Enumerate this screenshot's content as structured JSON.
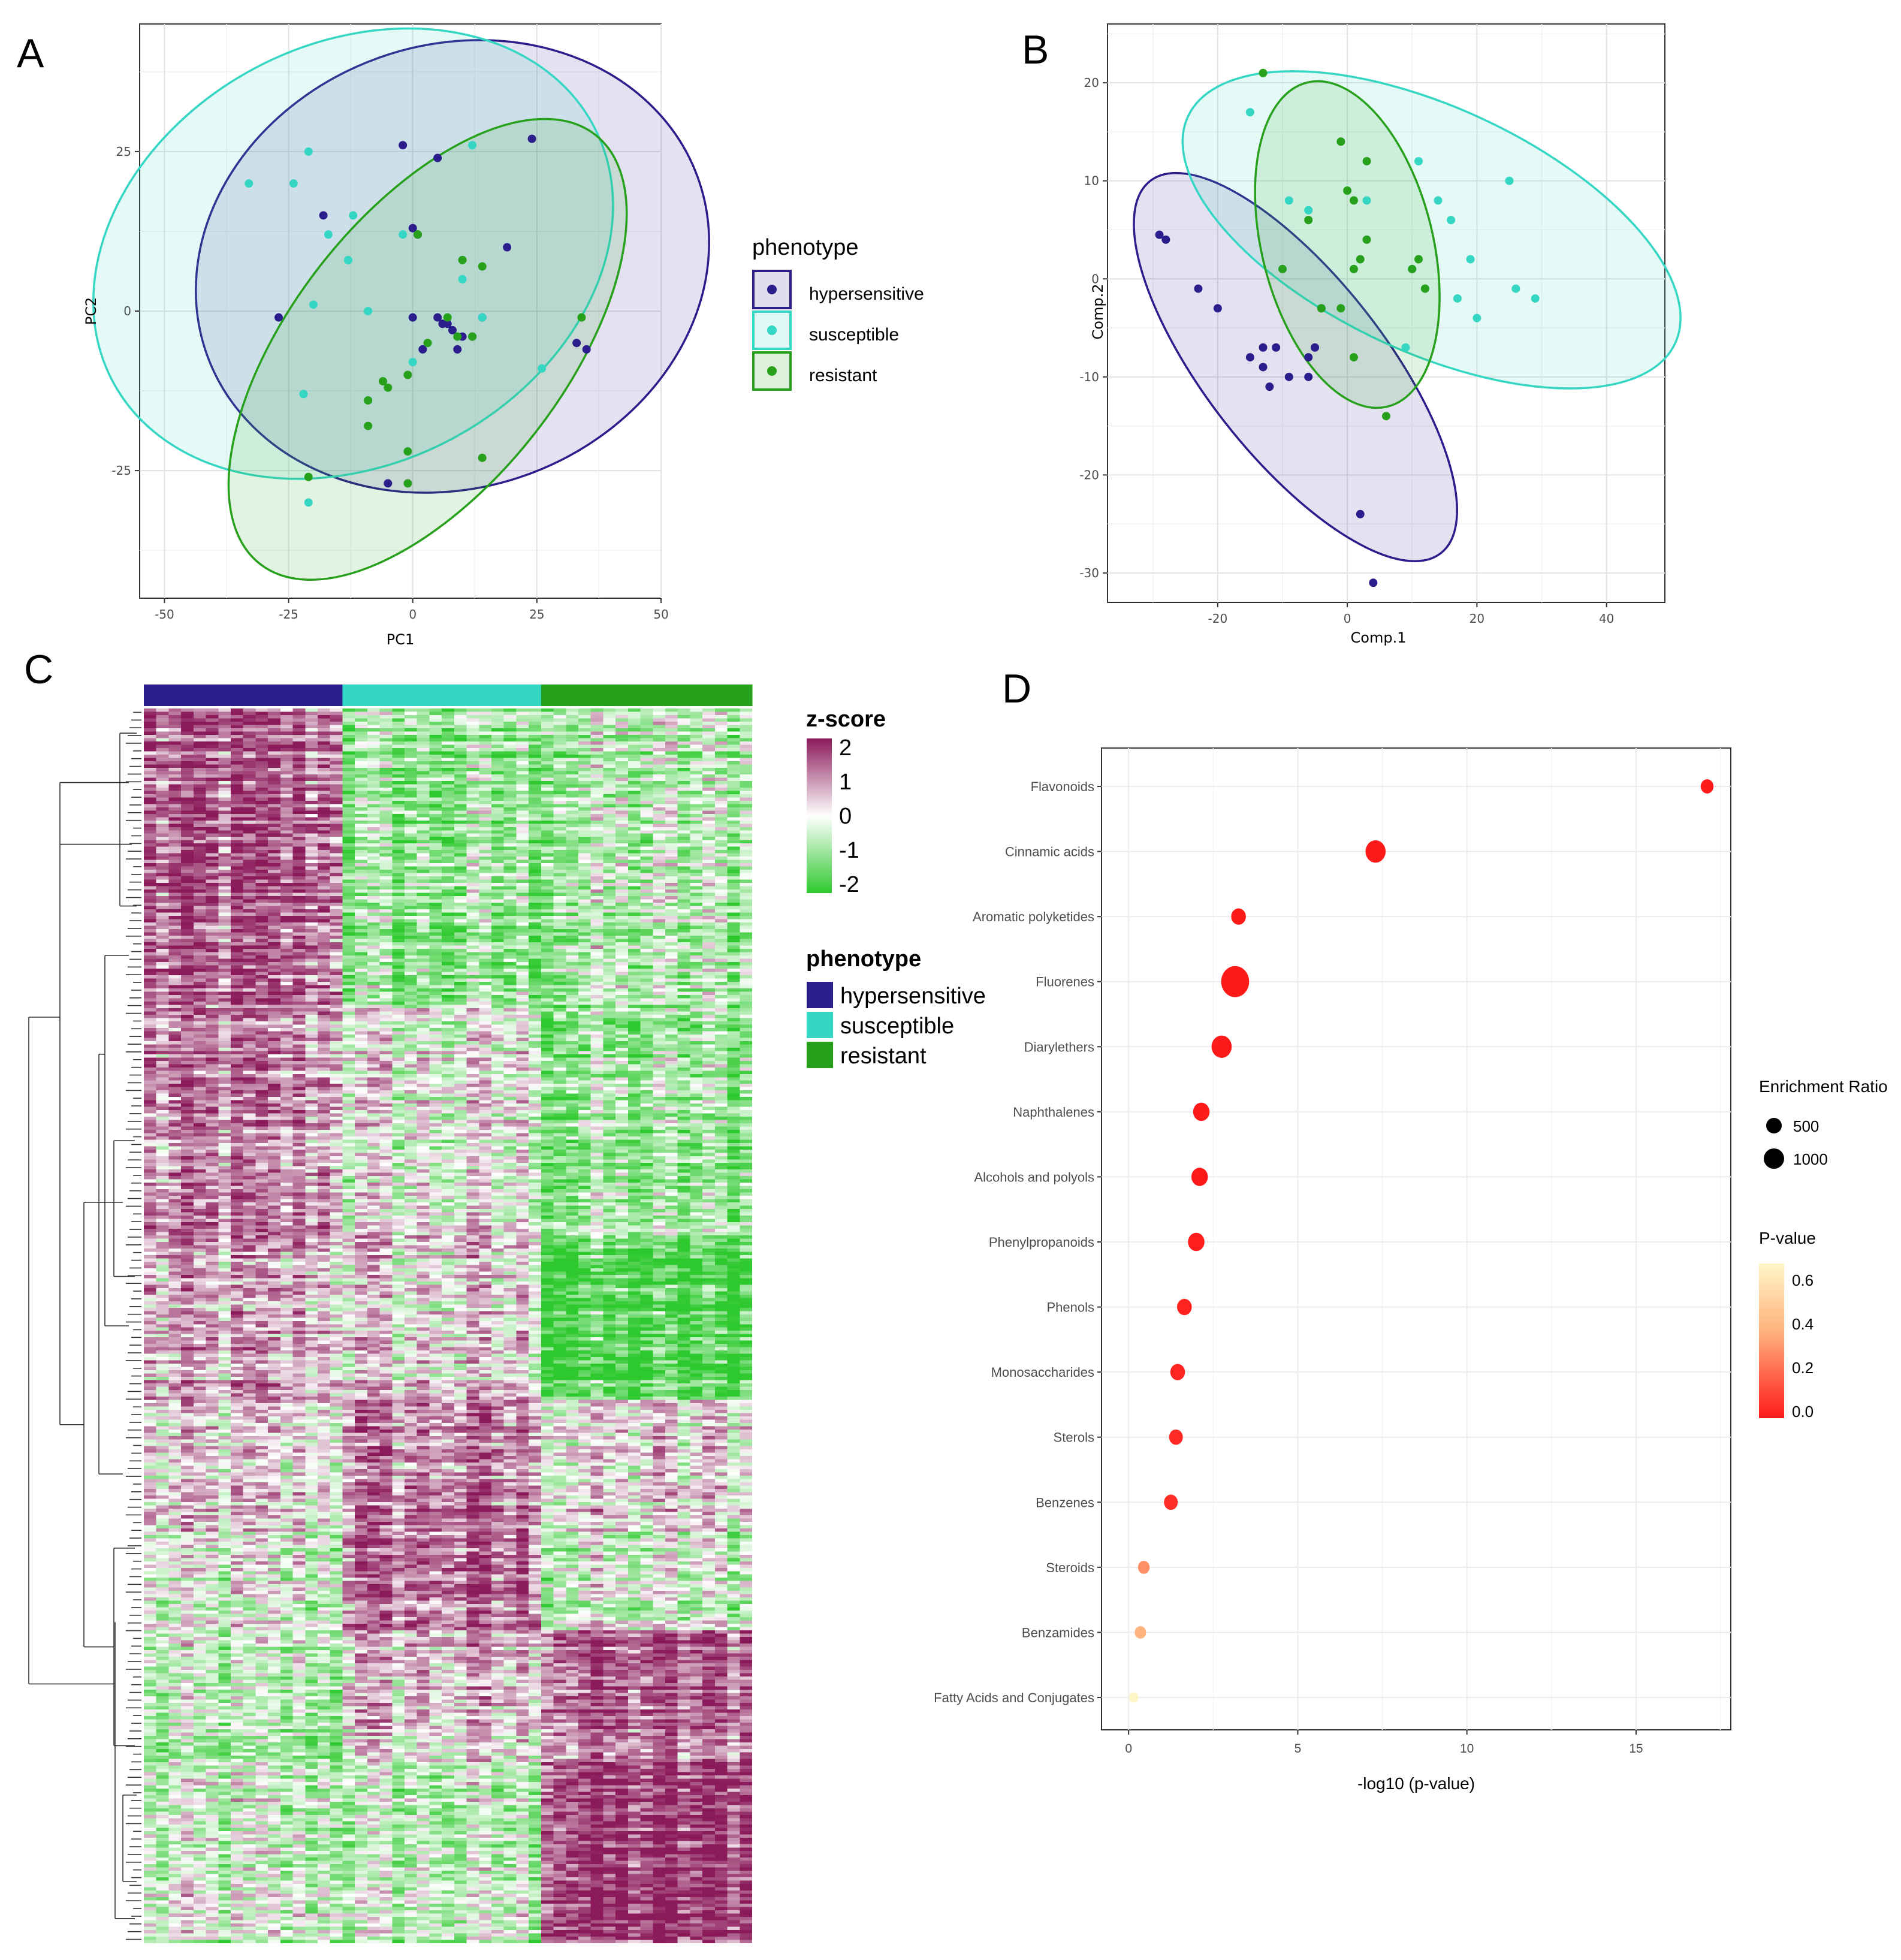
{
  "figure": {
    "panel_labels": [
      "A",
      "B",
      "C",
      "D"
    ]
  },
  "colors": {
    "hypersensitive": "#2b1e8c",
    "susceptible": "#35d6c3",
    "resistant": "#27a01c",
    "heat_high": "#8b1a5a",
    "heat_mid": "#ffffff",
    "heat_low": "#2ec92e",
    "pval_low": "#ff1a1a",
    "pval_high": "#fff6c8"
  },
  "chart_data": [
    {
      "panel": "A",
      "type": "scatter",
      "xlabel": "PC1",
      "ylabel": "PC2",
      "xlim": [
        -55,
        50
      ],
      "ylim": [
        -45,
        45
      ],
      "xticks": [
        "-50",
        "-25",
        "0",
        "25",
        "50"
      ],
      "yticks": [
        "-25",
        "0",
        "25"
      ],
      "legend": {
        "title": "phenotype",
        "entries": [
          "hypersensitive",
          "susceptible",
          "resistant"
        ]
      },
      "ellipses": [
        {
          "group": "hypersensitive",
          "cx": 8,
          "cy": 7,
          "rx": 46,
          "ry": 39,
          "angle": -20
        },
        {
          "group": "susceptible",
          "cx": -12,
          "cy": 9,
          "rx": 48,
          "ry": 37,
          "angle": -28
        },
        {
          "group": "resistant",
          "cx": 3,
          "cy": -6,
          "rx": 24,
          "ry": 48,
          "angle": 38
        }
      ],
      "series": [
        {
          "name": "hypersensitive",
          "points": [
            [
              -27,
              -1
            ],
            [
              -18,
              15
            ],
            [
              -2,
              26
            ],
            [
              5,
              24
            ],
            [
              1,
              12
            ],
            [
              0,
              13
            ],
            [
              2,
              -6
            ],
            [
              6,
              -2
            ],
            [
              7,
              -2
            ],
            [
              8,
              -3
            ],
            [
              9,
              -6
            ],
            [
              10,
              -4
            ],
            [
              12,
              -4
            ],
            [
              14,
              -1
            ],
            [
              19,
              10
            ],
            [
              24,
              27
            ],
            [
              33,
              -5
            ],
            [
              35,
              -6
            ],
            [
              -5,
              -27
            ],
            [
              0,
              -1
            ],
            [
              5,
              -1
            ]
          ]
        },
        {
          "name": "susceptible",
          "points": [
            [
              -33,
              20
            ],
            [
              -24,
              20
            ],
            [
              -21,
              25
            ],
            [
              -17,
              12
            ],
            [
              -13,
              8
            ],
            [
              -12,
              15
            ],
            [
              -9,
              0
            ],
            [
              -2,
              12
            ],
            [
              0,
              -8
            ],
            [
              -20,
              1
            ],
            [
              12,
              26
            ],
            [
              14,
              -1
            ],
            [
              26,
              -9
            ],
            [
              -22,
              -13
            ],
            [
              -21,
              -30
            ],
            [
              10,
              5
            ]
          ]
        },
        {
          "name": "resistant",
          "points": [
            [
              -9,
              -14
            ],
            [
              -9,
              -18
            ],
            [
              -6,
              -11
            ],
            [
              -5,
              -12
            ],
            [
              -1,
              -10
            ],
            [
              -1,
              -27
            ],
            [
              1,
              12
            ],
            [
              7,
              -1
            ],
            [
              9,
              -4
            ],
            [
              10,
              8
            ],
            [
              12,
              -4
            ],
            [
              14,
              7
            ],
            [
              14,
              -23
            ],
            [
              34,
              -1
            ],
            [
              -21,
              -26
            ],
            [
              -1,
              -22
            ],
            [
              3,
              -5
            ]
          ]
        }
      ]
    },
    {
      "panel": "B",
      "type": "scatter",
      "xlabel": "Comp.1",
      "ylabel": "Comp.2",
      "xlim": [
        -37,
        49
      ],
      "ylim": [
        -33,
        26
      ],
      "xticks": [
        "-20",
        "0",
        "20",
        "40"
      ],
      "yticks": [
        "-30",
        "-20",
        "-10",
        "0",
        "10",
        "20"
      ],
      "ellipses": [
        {
          "group": "hypersensitive",
          "cx": -8,
          "cy": -9,
          "rx": 29,
          "ry": 11,
          "angle": 52
        },
        {
          "group": "susceptible",
          "cx": 13,
          "cy": 5,
          "rx": 33,
          "ry": 15,
          "angle": 25
        },
        {
          "group": "resistant",
          "cx": 0,
          "cy": 3.5,
          "rx": 20.5,
          "ry": 10.5,
          "angle": 76
        }
      ],
      "series": [
        {
          "name": "hypersensitive",
          "points": [
            [
              -29,
              4.5
            ],
            [
              -28,
              4
            ],
            [
              -23,
              -1
            ],
            [
              -20,
              -3
            ],
            [
              -15,
              -8
            ],
            [
              -13,
              -9
            ],
            [
              -12,
              -11
            ],
            [
              -11,
              -7
            ],
            [
              -9,
              -10
            ],
            [
              -6,
              -10
            ],
            [
              -5,
              -7
            ],
            [
              -4,
              -3
            ],
            [
              2,
              -24
            ],
            [
              4,
              -31
            ],
            [
              -6,
              -8
            ],
            [
              -13,
              -7
            ]
          ]
        },
        {
          "name": "susceptible",
          "points": [
            [
              -15,
              17
            ],
            [
              -9,
              8
            ],
            [
              -6,
              7
            ],
            [
              3,
              8
            ],
            [
              10,
              1
            ],
            [
              11,
              12
            ],
            [
              12,
              -1
            ],
            [
              14,
              8
            ],
            [
              16,
              6
            ],
            [
              17,
              -2
            ],
            [
              19,
              2
            ],
            [
              20,
              -4
            ],
            [
              25,
              10
            ],
            [
              26,
              -1
            ],
            [
              29,
              -2
            ],
            [
              9,
              -7
            ]
          ]
        },
        {
          "name": "resistant",
          "points": [
            [
              -13,
              21
            ],
            [
              -6,
              6
            ],
            [
              -4,
              -3
            ],
            [
              -1,
              14
            ],
            [
              -1,
              -3
            ],
            [
              0,
              9
            ],
            [
              1,
              1
            ],
            [
              1,
              8
            ],
            [
              2,
              2
            ],
            [
              3,
              12
            ],
            [
              3,
              4
            ],
            [
              10,
              1
            ],
            [
              11,
              2
            ],
            [
              12,
              -1
            ],
            [
              -10,
              1
            ],
            [
              6,
              -14
            ],
            [
              1,
              -8
            ]
          ]
        }
      ]
    },
    {
      "panel": "C",
      "type": "heatmap",
      "legend_scale": {
        "title": "z-score",
        "ticks": [
          "2",
          "1",
          "0",
          "-1",
          "-2"
        ]
      },
      "legend": {
        "title": "phenotype",
        "entries": [
          "hypersensitive",
          "susceptible",
          "resistant"
        ]
      },
      "column_groups": [
        {
          "group": "hypersensitive",
          "columns": 16
        },
        {
          "group": "susceptible",
          "columns": 16
        },
        {
          "group": "resistant",
          "columns": 17
        }
      ],
      "row_blocks": [
        {
          "rows": 90,
          "means": [
            1.2,
            -0.9,
            -0.6
          ]
        },
        {
          "rows": 70,
          "means": [
            0.8,
            -0.1,
            -0.9
          ]
        },
        {
          "rows": 50,
          "means": [
            0.5,
            0.2,
            -1.6
          ]
        },
        {
          "rows": 40,
          "means": [
            0.1,
            0.9,
            0.1
          ]
        },
        {
          "rows": 30,
          "means": [
            -0.3,
            1.0,
            -0.4
          ]
        },
        {
          "rows": 40,
          "means": [
            -0.6,
            0.4,
            1.2
          ]
        },
        {
          "rows": 55,
          "means": [
            -0.4,
            -0.5,
            1.6
          ]
        }
      ]
    },
    {
      "panel": "D",
      "type": "scatter",
      "xlabel": "-log10 (p-value)",
      "xlim": [
        -0.8,
        17.8
      ],
      "xticks": [
        "0",
        "5",
        "10",
        "15"
      ],
      "categories": [
        "Flavonoids",
        "Cinnamic acids",
        "Aromatic polyketides",
        "Fluorenes",
        "Diarylethers",
        "Naphthalenes",
        "Alcohols and polyols",
        "Phenylpropanoids",
        "Phenols",
        "Monosaccharides",
        "Sterols",
        "Benzenes",
        "Steroids",
        "Benzamides",
        "Fatty Acids and Conjugates"
      ],
      "x": [
        17.1,
        7.3,
        3.25,
        3.15,
        2.75,
        2.15,
        2.1,
        2.0,
        1.65,
        1.45,
        1.4,
        1.25,
        0.45,
        0.35,
        0.15
      ],
      "enrichment_ratio": [
        160,
        560,
        240,
        1250,
        560,
        330,
        330,
        330,
        240,
        240,
        200,
        200,
        120,
        110,
        60
      ],
      "p_value": [
        0.0,
        0.0,
        0.0,
        0.0,
        0.0,
        0.0,
        0.0,
        0.01,
        0.02,
        0.03,
        0.04,
        0.05,
        0.3,
        0.4,
        0.7
      ],
      "size_legend": {
        "title": "Enrichment Ratio",
        "entries": [
          "500",
          "1000"
        ]
      },
      "color_legend": {
        "title": "P-value",
        "ticks": [
          "0.6",
          "0.4",
          "0.2",
          "0.0"
        ]
      }
    }
  ]
}
